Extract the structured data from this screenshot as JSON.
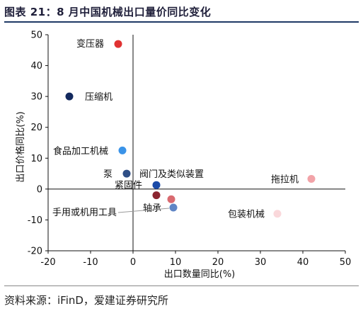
{
  "header": {
    "title": "图表 21：8 月中国机械出口量价同比变化"
  },
  "footer": {
    "source": "资料来源：iFinD，爱建证券研究所"
  },
  "chart_data": {
    "type": "scatter",
    "title": "",
    "xlabel": "出口数量同比(%)",
    "ylabel": "出口价格同比(%)",
    "xlim": [
      -20,
      50
    ],
    "ylim": [
      -20,
      50
    ],
    "xticks": [
      "-20",
      "-10",
      "0",
      "10",
      "20",
      "30",
      "40",
      "50"
    ],
    "yticks": [
      "-20",
      "-10",
      "0",
      "10",
      "20",
      "30",
      "40",
      "50"
    ],
    "grid": false,
    "legend": "none",
    "points": [
      {
        "label": "变压器",
        "x": -3.5,
        "y": 47,
        "color": "#e03232"
      },
      {
        "label": "压缩机",
        "x": -15,
        "y": 30,
        "color": "#13295e"
      },
      {
        "label": "食品加工机械",
        "x": -2.5,
        "y": 12.5,
        "color": "#3a93e8"
      },
      {
        "label": "泵",
        "x": -1.5,
        "y": 5,
        "color": "#2f4f86"
      },
      {
        "label": "阀门及类似装置",
        "x": 5.5,
        "y": 1.3,
        "color": "#1a4aa8"
      },
      {
        "label": "紧固件",
        "x": 5.5,
        "y": -2,
        "color": "#8b2530"
      },
      {
        "label": "轴承",
        "x": 9,
        "y": -3.3,
        "color": "#d96a70"
      },
      {
        "label": "手用或机用工具",
        "x": 9.5,
        "y": -6,
        "color": "#5f85c5"
      },
      {
        "label": "拖拉机",
        "x": 42,
        "y": 3.3,
        "color": "#f2a3a8"
      },
      {
        "label": "包装机械",
        "x": 34,
        "y": -8,
        "color": "#fad8db"
      }
    ]
  }
}
